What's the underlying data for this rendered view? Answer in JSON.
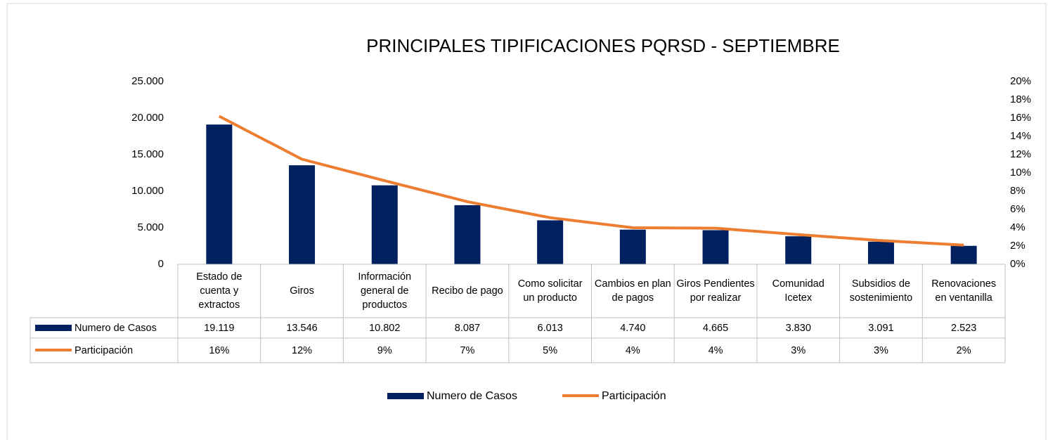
{
  "chart_data": {
    "type": "bar_line_table",
    "title": "PRINCIPALES TIPIFICACIONES  PQRSD - SEPTIEMBRE",
    "categories": [
      "Estado de cuenta y extractos",
      "Giros",
      "Información general de productos",
      "Recibo de pago",
      "Como solicitar un producto",
      "Cambios en plan de pagos",
      "Giros Pendientes por realizar",
      "Comunidad Icetex",
      "Subsidios de sostenimiento",
      "Renovaciones en ventanilla"
    ],
    "series": [
      {
        "name": "Numero de Casos",
        "color": "#002060",
        "type": "bar",
        "values": [
          19119,
          13546,
          10802,
          8087,
          6013,
          4740,
          4665,
          3830,
          3091,
          2523
        ],
        "value_labels": [
          "19.119",
          "13.546",
          "10.802",
          "8.087",
          "6.013",
          "4.740",
          "4.665",
          "3.830",
          "3.091",
          "2.523"
        ]
      },
      {
        "name": "Participación",
        "color": "#ed7d31",
        "type": "line",
        "axis": "y2",
        "values": [
          16.2,
          11.5,
          9.15,
          6.85,
          5.1,
          4.0,
          3.95,
          3.25,
          2.6,
          2.1
        ],
        "value_labels": [
          "16%",
          "12%",
          "9%",
          "7%",
          "5%",
          "4%",
          "4%",
          "3%",
          "3%",
          "2%"
        ]
      }
    ],
    "ylim": [
      0,
      25000
    ],
    "yticks": [
      0,
      {
        "value": 5000,
        "label": "5.000"
      },
      {
        "value": 10000,
        "label": "10.000"
      },
      {
        "value": 15000,
        "label": "15.000"
      },
      {
        "value": 20000,
        "label": "20.000"
      },
      {
        "value": 25000,
        "label": "25.000"
      }
    ],
    "y2lim": [
      0,
      20
    ],
    "y2ticks": [
      {
        "value": 0,
        "label": "0%"
      },
      {
        "value": 2,
        "label": "2%"
      },
      {
        "value": 4,
        "label": "4%"
      },
      {
        "value": 6,
        "label": "6%"
      },
      {
        "value": 8,
        "label": "8%"
      },
      {
        "value": 10,
        "label": "10%"
      },
      {
        "value": 12,
        "label": "12%"
      },
      {
        "value": 14,
        "label": "14%"
      },
      {
        "value": 16,
        "label": "16%"
      },
      {
        "value": 18,
        "label": "18%"
      },
      {
        "value": 20,
        "label": "20%"
      }
    ],
    "legend": "bottom"
  }
}
